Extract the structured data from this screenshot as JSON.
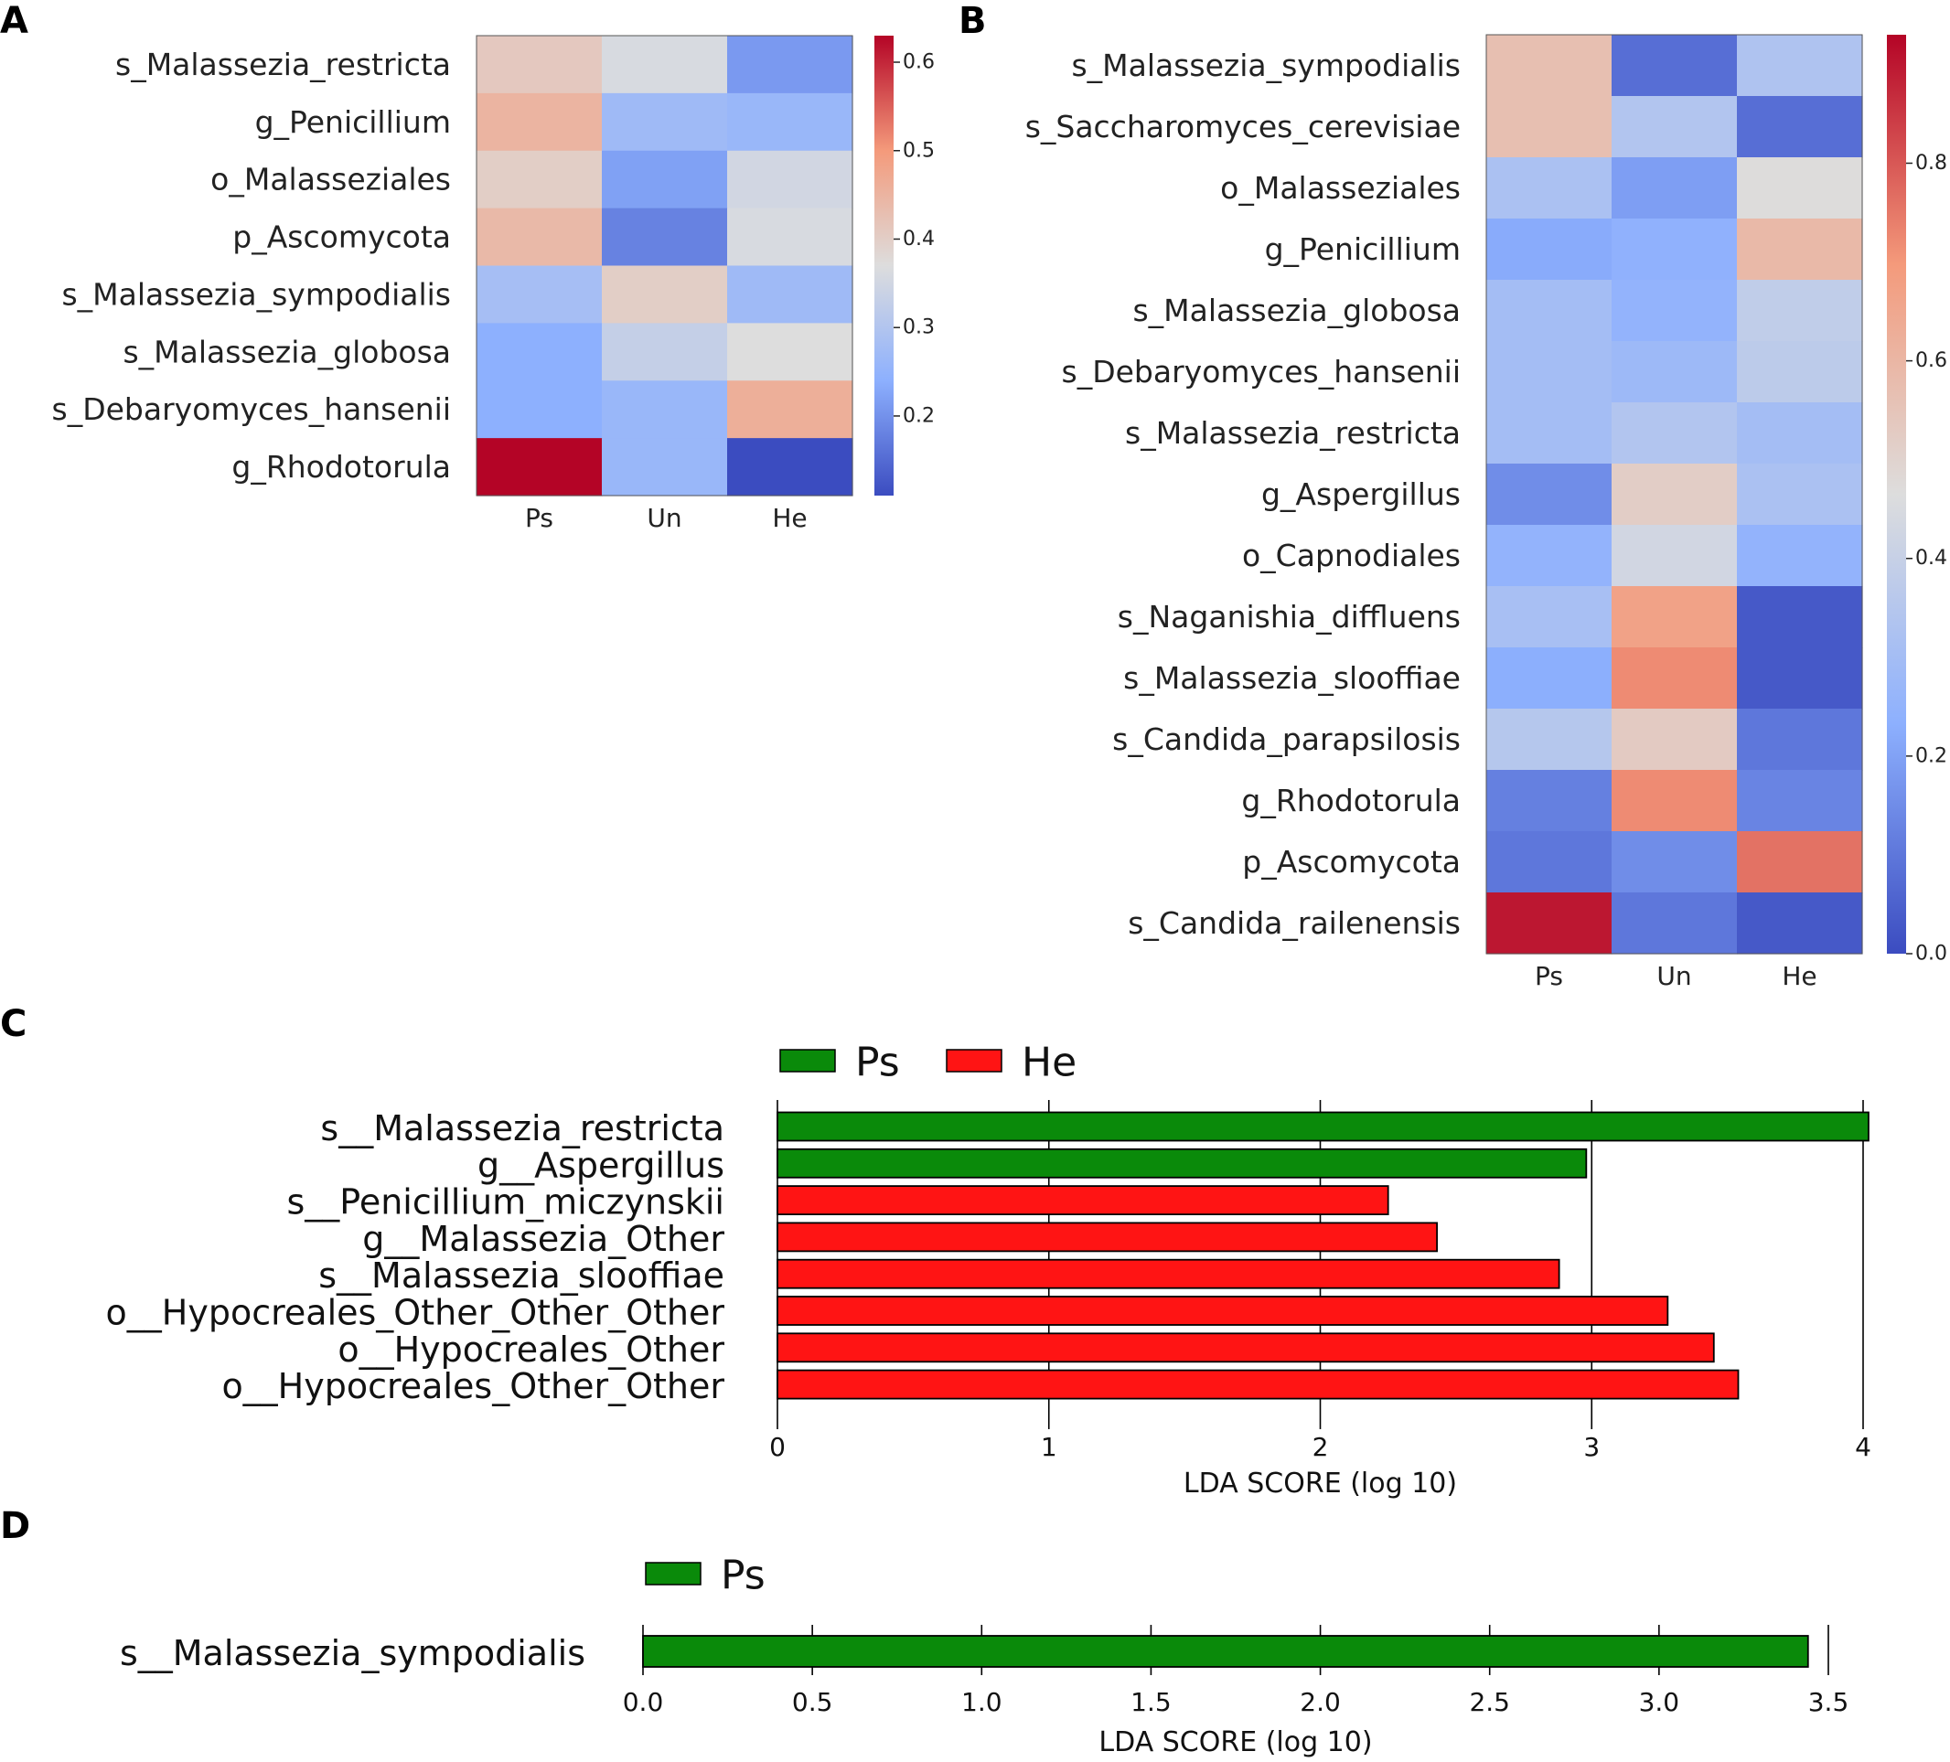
{
  "panels": {
    "A": {
      "letter": "A"
    },
    "B": {
      "letter": "B"
    },
    "C": {
      "letter": "C"
    },
    "D": {
      "letter": "D"
    }
  },
  "chart_data": [
    {
      "id": "A",
      "type": "heatmap",
      "rows": [
        "s_Malassezia_restricta",
        "g_Penicillium",
        "o_Malasseziales",
        "p_Ascomycota",
        "s_Malassezia_sympodialis",
        "s_Malassezia_globosa",
        "s_Debaryomyces_hansenii",
        "g_Rhodotorula"
      ],
      "columns": [
        "Ps",
        "Un",
        "He"
      ],
      "values": [
        [
          0.41,
          0.36,
          0.21
        ],
        [
          0.45,
          0.27,
          0.26
        ],
        [
          0.4,
          0.22,
          0.35
        ],
        [
          0.44,
          0.18,
          0.36
        ],
        [
          0.28,
          0.4,
          0.27
        ],
        [
          0.24,
          0.33,
          0.37
        ],
        [
          0.24,
          0.26,
          0.46
        ],
        [
          0.63,
          0.26,
          0.11
        ]
      ],
      "colorbar": {
        "min": 0.11,
        "max": 0.63,
        "ticks": [
          0.2,
          0.3,
          0.4,
          0.5,
          0.6
        ]
      }
    },
    {
      "id": "B",
      "type": "heatmap",
      "rows": [
        "s_Malassezia_sympodialis",
        "s_Saccharomyces_cerevisiae",
        "o_Malasseziales",
        "g_Penicillium",
        "s_Malassezia_globosa",
        "s_Debaryomyces_hansenii",
        "s_Malassezia_restricta",
        "g_Aspergillus",
        "o_Capnodiales",
        "s_Naganishia_diffluens",
        "s_Malassezia_slooffiae",
        "s_Candida_parapsilosis",
        "g_Rhodotorula",
        "p_Ascomycota",
        "s_Candida_railenensis"
      ],
      "columns": [
        "Ps",
        "Un",
        "He"
      ],
      "values": [
        [
          0.57,
          0.08,
          0.33
        ],
        [
          0.57,
          0.34,
          0.08
        ],
        [
          0.32,
          0.19,
          0.47
        ],
        [
          0.22,
          0.24,
          0.59
        ],
        [
          0.3,
          0.25,
          0.38
        ],
        [
          0.3,
          0.28,
          0.37
        ],
        [
          0.3,
          0.34,
          0.3
        ],
        [
          0.15,
          0.52,
          0.32
        ],
        [
          0.25,
          0.43,
          0.25
        ],
        [
          0.31,
          0.67,
          0.03
        ],
        [
          0.23,
          0.72,
          0.03
        ],
        [
          0.35,
          0.53,
          0.1
        ],
        [
          0.12,
          0.72,
          0.13
        ],
        [
          0.1,
          0.15,
          0.76
        ],
        [
          0.9,
          0.1,
          0.03
        ]
      ],
      "colorbar": {
        "min": 0.0,
        "max": 0.93,
        "ticks": [
          "0.0",
          "0.2",
          "0.4",
          "0.6",
          "0.8"
        ]
      }
    },
    {
      "id": "C",
      "type": "bar",
      "orientation": "horizontal",
      "categories": [
        "s__Malassezia_restricta",
        "g__Aspergillus",
        "s__Penicillium_miczynskii",
        "g__Malassezia_Other",
        "s__Malassezia_slooffiae",
        "o__Hypocreales_Other_Other_Other",
        "o__Hypocreales_Other",
        "o__Hypocreales_Other_Other"
      ],
      "values": [
        4.02,
        2.98,
        2.25,
        2.43,
        2.88,
        3.28,
        3.45,
        3.54
      ],
      "groups": [
        "Ps",
        "Ps",
        "He",
        "He",
        "He",
        "He",
        "He",
        "He"
      ],
      "legend": [
        {
          "name": "Ps",
          "color": "#0a8a0a"
        },
        {
          "name": "He",
          "color": "#ff1414"
        }
      ],
      "xlabel": "LDA SCORE (log 10)",
      "xlim": [
        0,
        4
      ],
      "xticks": [
        "0",
        "1",
        "2",
        "3",
        "4"
      ]
    },
    {
      "id": "D",
      "type": "bar",
      "orientation": "horizontal",
      "categories": [
        "s__Malassezia_sympodialis"
      ],
      "values": [
        3.44
      ],
      "groups": [
        "Ps"
      ],
      "legend": [
        {
          "name": "Ps",
          "color": "#0a8a0a"
        }
      ],
      "xlabel": "LDA SCORE (log 10)",
      "xlim": [
        0,
        3.5
      ],
      "xticks": [
        "0.0",
        "0.5",
        "1.0",
        "1.5",
        "2.0",
        "2.5",
        "3.0",
        "3.5"
      ]
    }
  ]
}
